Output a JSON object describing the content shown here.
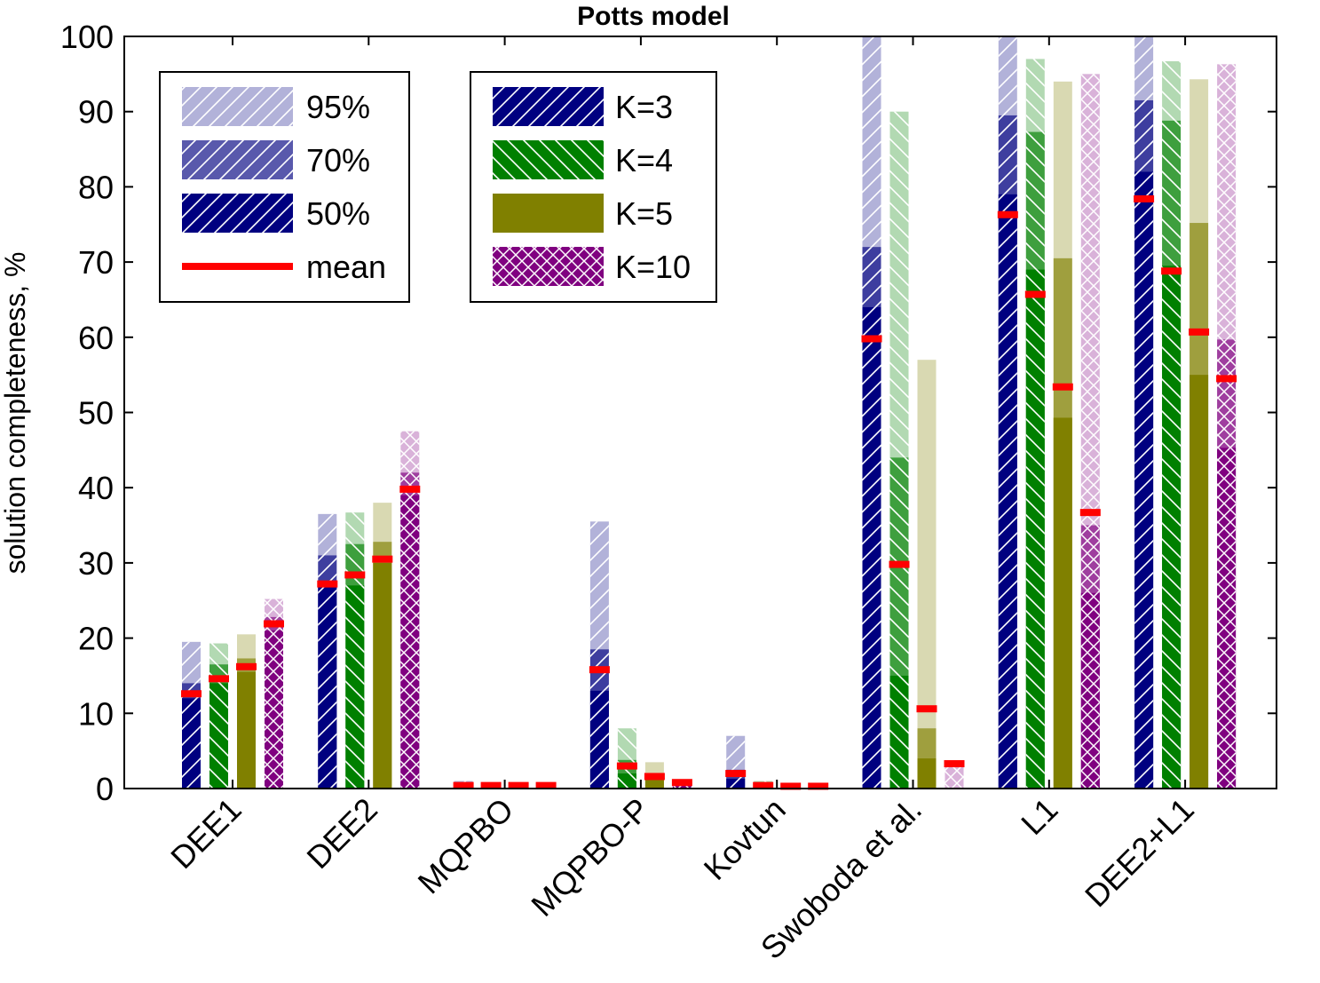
{
  "chart_data": {
    "type": "bar",
    "title": "Potts model",
    "xlabel": "",
    "ylabel": "solution completeness, %",
    "ylim": [
      0,
      100
    ],
    "yticks": [
      "0",
      "10",
      "20",
      "30",
      "40",
      "50",
      "60",
      "70",
      "80",
      "90",
      "100"
    ],
    "categories": [
      "DEE1",
      "DEE2",
      "MQPBO",
      "MQPBO-P",
      "Kovtun",
      "Swoboda et al.",
      "L1",
      "DEE2+L1"
    ],
    "percentile_legend": [
      {
        "label": "95%",
        "key": "p95"
      },
      {
        "label": "70%",
        "key": "p70"
      },
      {
        "label": "50%",
        "key": "p50"
      },
      {
        "label": "mean",
        "key": "mean"
      }
    ],
    "series": [
      {
        "name": "K=3",
        "color": "#000080",
        "pattern": "diag-right",
        "p50": [
          12,
          27,
          0,
          13,
          1.3,
          64,
          79,
          82
        ],
        "p70": [
          14,
          31,
          0,
          18.5,
          2.5,
          72,
          89.5,
          91.5
        ],
        "p95": [
          19.5,
          36.5,
          1,
          35.5,
          7,
          100,
          100,
          100
        ],
        "mean": [
          12.6,
          27.2,
          0.4,
          15.8,
          2.0,
          59.8,
          76.3,
          78.4
        ]
      },
      {
        "name": "K=4",
        "color": "#008000",
        "pattern": "diag-left",
        "p50": [
          14,
          27,
          0,
          2,
          0.2,
          15,
          69,
          69.5
        ],
        "p70": [
          16.5,
          32.5,
          0,
          3.8,
          0.5,
          44,
          87.3,
          88.8
        ],
        "p95": [
          19.3,
          36.7,
          0,
          8,
          1,
          90,
          97,
          96.7
        ],
        "mean": [
          14.6,
          28.4,
          0.4,
          3.0,
          0.4,
          29.8,
          65.7,
          68.8
        ]
      },
      {
        "name": "K=5",
        "color": "#808000",
        "pattern": "solid",
        "p50": [
          15.5,
          30,
          0,
          1.2,
          0,
          4,
          49.3,
          55
        ],
        "p70": [
          17.3,
          32.8,
          0,
          2,
          0,
          8,
          70.5,
          75.2
        ],
        "p95": [
          20.5,
          38,
          0,
          3.5,
          0,
          57,
          94,
          94.3
        ],
        "mean": [
          16.2,
          30.5,
          0.4,
          1.6,
          0.3,
          10.6,
          53.4,
          60.7
        ]
      },
      {
        "name": "K=10",
        "color": "#800080",
        "pattern": "crosshatch",
        "p50": [
          21,
          39,
          0,
          0.7,
          0,
          0,
          26,
          45.3
        ],
        "p70": [
          22.8,
          42,
          0,
          0.9,
          0,
          0,
          35,
          59.7
        ],
        "p95": [
          25.2,
          47.5,
          0,
          1,
          0,
          3,
          95,
          96.3
        ],
        "mean": [
          21.9,
          39.8,
          0.4,
          0.8,
          0.3,
          3.3,
          36.7,
          54.5
        ]
      }
    ]
  }
}
